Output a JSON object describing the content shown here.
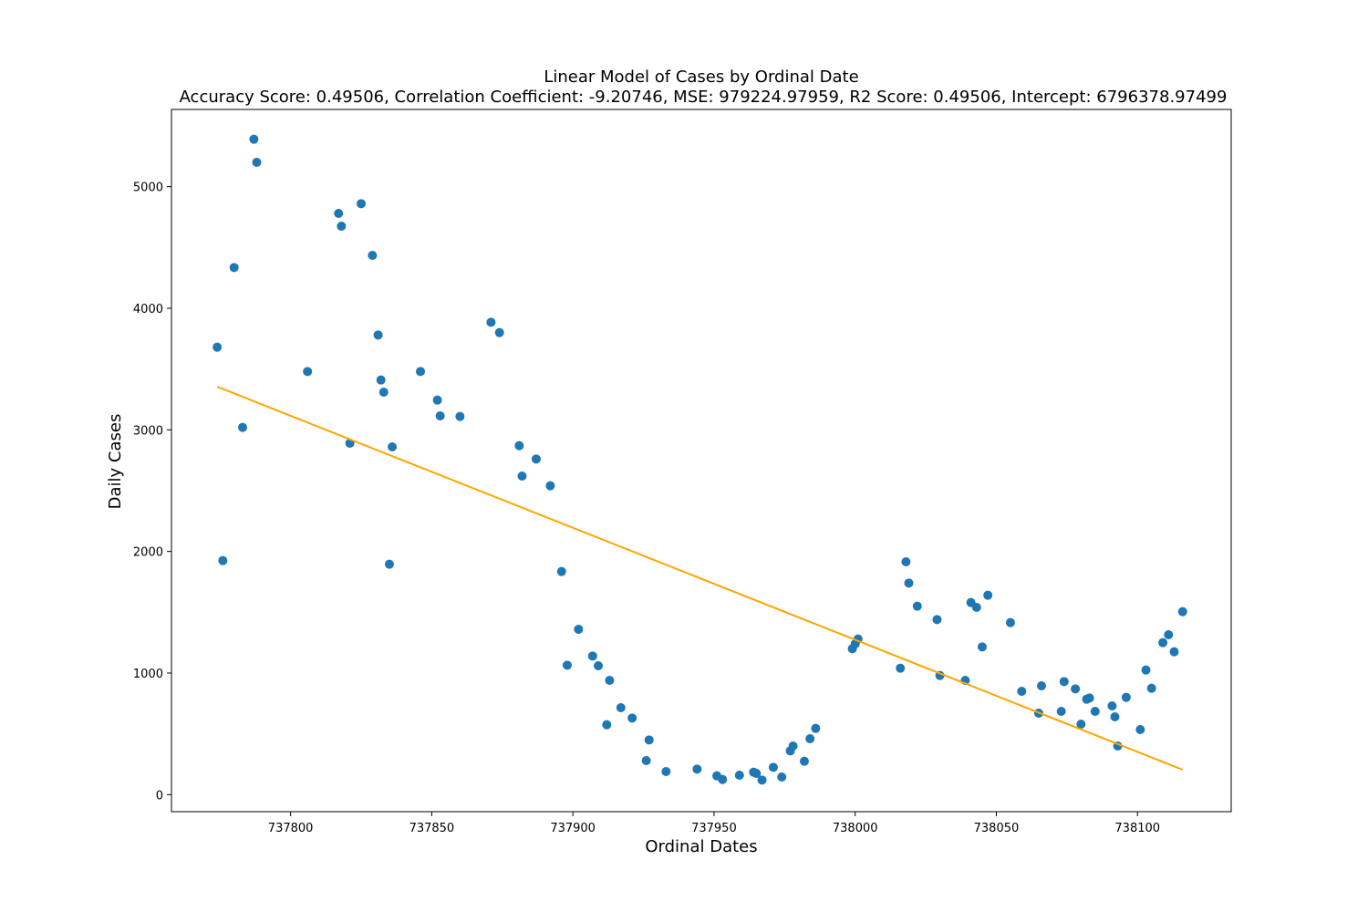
{
  "chart_data": {
    "type": "scatter",
    "title": "Linear Model of Cases by Ordinal Date",
    "subtitle": "Accuracy Score: 0.49506, Correlation Coefficient: -9.20746, MSE: 979224.97959, R2 Score: 0.49506, Intercept: 6796378.97499",
    "xlabel": "Ordinal Dates",
    "ylabel": "Daily Cases",
    "xlim": [
      737757.8,
      738133.2
    ],
    "ylim": [
      -140,
      5635
    ],
    "x_ticks": [
      737800,
      737850,
      737900,
      737950,
      738000,
      738050,
      738100
    ],
    "y_ticks": [
      0,
      1000,
      2000,
      3000,
      4000,
      5000
    ],
    "grid": false,
    "colors": {
      "points": "#1f77b4",
      "fit_line": "#ffa500",
      "axes": "#000000"
    },
    "series": [
      {
        "type": "scatter",
        "points": [
          [
            737774,
            3680
          ],
          [
            737776,
            1925
          ],
          [
            737780,
            4335
          ],
          [
            737783,
            3020
          ],
          [
            737787,
            5390
          ],
          [
            737788,
            5200
          ],
          [
            737806,
            3480
          ],
          [
            737817,
            4780
          ],
          [
            737818,
            4675
          ],
          [
            737821,
            2890
          ],
          [
            737825,
            4860
          ],
          [
            737829,
            4435
          ],
          [
            737831,
            3780
          ],
          [
            737832,
            3410
          ],
          [
            737833,
            3310
          ],
          [
            737835,
            1895
          ],
          [
            737836,
            2860
          ],
          [
            737846,
            3480
          ],
          [
            737852,
            3245
          ],
          [
            737853,
            3115
          ],
          [
            737860,
            3110
          ],
          [
            737871,
            3885
          ],
          [
            737874,
            3800
          ],
          [
            737881,
            2870
          ],
          [
            737882,
            2620
          ],
          [
            737887,
            2760
          ],
          [
            737892,
            2540
          ],
          [
            737896,
            1835
          ],
          [
            737898,
            1065
          ],
          [
            737902,
            1360
          ],
          [
            737907,
            1140
          ],
          [
            737909,
            1060
          ],
          [
            737912,
            575
          ],
          [
            737913,
            940
          ],
          [
            737917,
            715
          ],
          [
            737921,
            630
          ],
          [
            737926,
            280
          ],
          [
            737927,
            450
          ],
          [
            737933,
            190
          ],
          [
            737944,
            210
          ],
          [
            737951,
            155
          ],
          [
            737953,
            125
          ],
          [
            737959,
            160
          ],
          [
            737964,
            185
          ],
          [
            737965,
            175
          ],
          [
            737967,
            120
          ],
          [
            737971,
            225
          ],
          [
            737974,
            145
          ],
          [
            737977,
            360
          ],
          [
            737978,
            400
          ],
          [
            737982,
            275
          ],
          [
            737984,
            460
          ],
          [
            737986,
            545
          ],
          [
            737999,
            1200
          ],
          [
            738000,
            1240
          ],
          [
            738001,
            1280
          ],
          [
            738016,
            1040
          ],
          [
            738018,
            1915
          ],
          [
            738019,
            1740
          ],
          [
            738022,
            1550
          ],
          [
            738029,
            1440
          ],
          [
            738030,
            980
          ],
          [
            738039,
            940
          ],
          [
            738041,
            1580
          ],
          [
            738043,
            1540
          ],
          [
            738045,
            1215
          ],
          [
            738047,
            1640
          ],
          [
            738055,
            1415
          ],
          [
            738059,
            850
          ],
          [
            738065,
            670
          ],
          [
            738066,
            895
          ],
          [
            738073,
            685
          ],
          [
            738074,
            930
          ],
          [
            738078,
            870
          ],
          [
            738080,
            580
          ],
          [
            738082,
            785
          ],
          [
            738083,
            795
          ],
          [
            738085,
            685
          ],
          [
            738091,
            730
          ],
          [
            738092,
            640
          ],
          [
            738093,
            400
          ],
          [
            738096,
            800
          ],
          [
            738101,
            535
          ],
          [
            738103,
            1025
          ],
          [
            738105,
            875
          ],
          [
            738109,
            1250
          ],
          [
            738111,
            1315
          ],
          [
            738113,
            1175
          ],
          [
            738116,
            1505
          ]
        ]
      },
      {
        "type": "line",
        "x": [
          737774,
          738116
        ],
        "y": [
          3355,
          205
        ]
      }
    ]
  }
}
